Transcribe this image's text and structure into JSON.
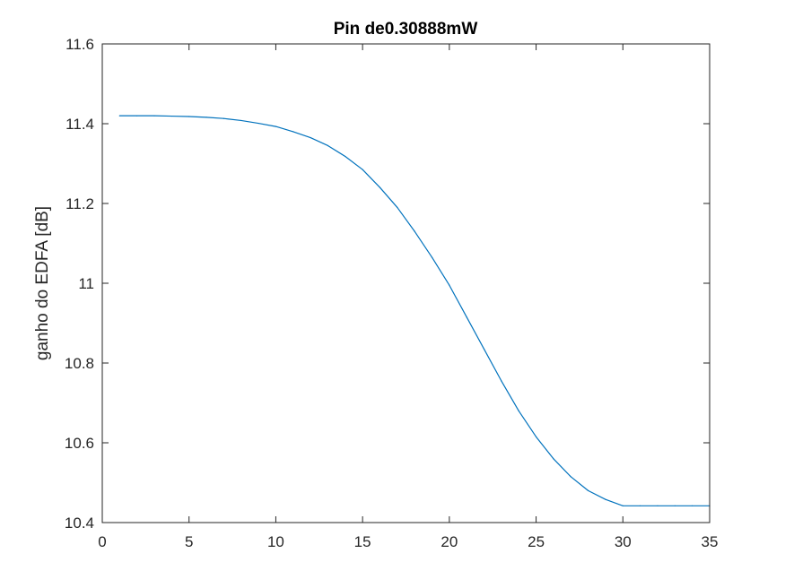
{
  "chart_data": {
    "type": "line",
    "title": "Pin de0.30888mW",
    "xlabel": "",
    "ylabel": "ganho do EDFA [dB]",
    "xlim": [
      0,
      35
    ],
    "ylim": [
      10.4,
      11.6
    ],
    "x_ticks": [
      0,
      5,
      10,
      15,
      20,
      25,
      30,
      35
    ],
    "y_ticks": [
      10.4,
      10.6,
      10.8,
      11,
      11.2,
      11.4,
      11.6
    ],
    "x_tick_labels": [
      "0",
      "5",
      "10",
      "15",
      "20",
      "25",
      "30",
      "35"
    ],
    "y_tick_labels": [
      "10.4",
      "10.6",
      "10.8",
      "11",
      "11.2",
      "11.4",
      "11.6"
    ],
    "grid": false,
    "line_color": "#0072BD",
    "axis_color": "#262626",
    "series": [
      {
        "x": [
          1,
          2,
          3,
          4,
          5,
          6,
          7,
          8,
          9,
          10,
          11,
          12,
          13,
          14,
          15,
          16,
          17,
          18,
          19,
          20,
          21,
          22,
          23,
          24,
          25,
          26,
          27,
          28,
          29,
          30,
          31,
          32,
          33,
          34,
          35
        ],
        "values": [
          11.42,
          11.42,
          11.42,
          11.419,
          11.418,
          11.416,
          11.413,
          11.408,
          11.401,
          11.393,
          11.38,
          11.365,
          11.345,
          11.318,
          11.285,
          11.24,
          11.19,
          11.13,
          11.065,
          10.995,
          10.915,
          10.835,
          10.755,
          10.68,
          10.615,
          10.56,
          10.515,
          10.48,
          10.458,
          10.442,
          10.442,
          10.442,
          10.442,
          10.442,
          10.442
        ]
      }
    ]
  }
}
